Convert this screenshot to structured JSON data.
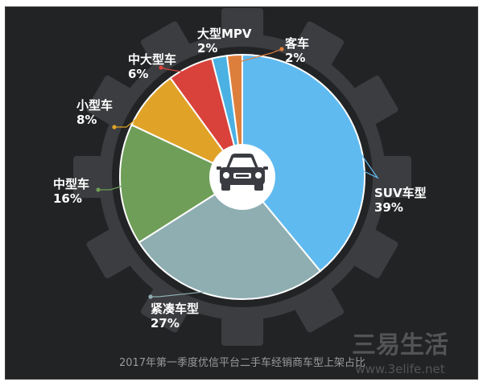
{
  "chart_data": {
    "type": "pie",
    "caption": "2017年第一季度优信平台二手车经销商车型上架占比",
    "slices": [
      {
        "label": "SUV车型",
        "value": 39,
        "display": "39%",
        "color": "#5fbaf0"
      },
      {
        "label": "紧凑车型",
        "value": 27,
        "display": "27%",
        "color": "#8faeb2"
      },
      {
        "label": "中型车",
        "value": 16,
        "display": "16%",
        "color": "#6f9e58"
      },
      {
        "label": "小型车",
        "value": 8,
        "display": "8%",
        "color": "#e0a328"
      },
      {
        "label": "中大型车",
        "value": 6,
        "display": "6%",
        "color": "#d8423b"
      },
      {
        "label": "大型MPV",
        "value": 2,
        "display": "2%",
        "color": "#4ab1e2"
      },
      {
        "label": "客车",
        "value": 2,
        "display": "2%",
        "color": "#dd7f3c"
      }
    ]
  },
  "watermark": {
    "title": "三易生活",
    "url": "www.3elife.net"
  },
  "colors": {
    "background": "#222325",
    "gear": "#3c3d40",
    "center_circle": "#ffffff",
    "car": "#3a3c42"
  },
  "icons": {
    "center": "car-icon"
  }
}
